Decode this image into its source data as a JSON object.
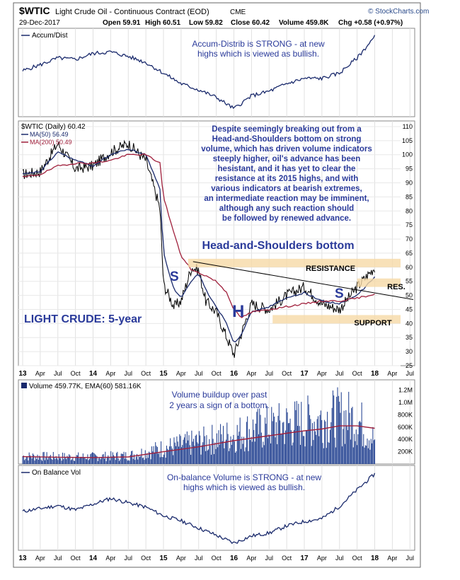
{
  "header": {
    "symbol": "$WTIC",
    "name": "Light Crude Oil - Continuous Contract (EOD)",
    "exchange": "CME",
    "date": "29-Dec-2017",
    "open": "Open 59.91",
    "high": "High 60.51",
    "low": "Low 59.82",
    "close": "Close 60.42",
    "volume": "Volume 459.8K",
    "chg": "Chg +0.58 (+0.97%)",
    "source": "© StockCharts.com"
  },
  "chart_data": [
    {
      "type": "line",
      "panel": "accum-dist",
      "legend": "Accum/Dist",
      "annotation": [
        "Accum-Distrib is STRONG - at new",
        "highs which is viewed as bullish."
      ],
      "x": [
        "13",
        "13.25",
        "13.5",
        "13.75",
        "14",
        "14.25",
        "14.5",
        "14.75",
        "15",
        "15.25",
        "15.5",
        "15.75",
        "16",
        "16.25",
        "16.5",
        "16.75",
        "17",
        "17.25",
        "17.5",
        "17.75",
        "18"
      ],
      "values": [
        0.55,
        0.63,
        0.72,
        0.7,
        0.78,
        0.8,
        0.74,
        0.66,
        0.52,
        0.38,
        0.3,
        0.2,
        0.05,
        0.22,
        0.28,
        0.38,
        0.45,
        0.45,
        0.52,
        0.72,
        1.0
      ]
    },
    {
      "type": "line",
      "panel": "price",
      "legend": [
        {
          "name": "$WTIC (Daily) 60.42",
          "color": "#000000"
        },
        {
          "name": "MA(50) 56.49",
          "color": "#1a2a6c"
        },
        {
          "name": "MA(200) 50.49",
          "color": "#a0203c"
        }
      ],
      "y_ticks": [
        "110",
        "105",
        "100",
        "95",
        "90",
        "85",
        "80",
        "75",
        "70",
        "65",
        "60",
        "55",
        "50",
        "45",
        "40",
        "35",
        "30",
        "25"
      ],
      "ylim": [
        25,
        112
      ],
      "x_ticks": [
        "13",
        "Apr",
        "Jul",
        "Oct",
        "14",
        "Apr",
        "Jul",
        "Oct",
        "15",
        "Apr",
        "Jul",
        "Oct",
        "16",
        "Apr",
        "Jul",
        "Oct",
        "17",
        "Apr",
        "Jul",
        "Oct",
        "18",
        "Apr",
        "Jul"
      ],
      "x": [
        0,
        0.25,
        0.5,
        0.75,
        1,
        1.25,
        1.5,
        1.75,
        1.95,
        2,
        2.15,
        2.25,
        2.4,
        2.5,
        2.6,
        2.75,
        2.9,
        3,
        3.1,
        3.25,
        3.5,
        3.75,
        4,
        4.25,
        4.5,
        4.75,
        5
      ],
      "series": [
        {
          "name": "$WTIC (Daily) 60.42",
          "values": [
            93,
            94,
            104,
            95,
            96,
            101,
            104,
            98,
            81,
            54,
            46,
            48,
            60,
            59,
            48,
            44,
            35,
            29,
            36,
            47,
            45,
            50,
            53,
            47,
            45,
            53,
            60
          ]
        },
        {
          "name": "MA(50) 56.49",
          "values": [
            93,
            94,
            101,
            98,
            96,
            100,
            102,
            100,
            88,
            65,
            52,
            49,
            55,
            58,
            52,
            46,
            40,
            33,
            36,
            44,
            46,
            49,
            51,
            48,
            47,
            50,
            56.5
          ]
        },
        {
          "name": "MA(200) 50.49",
          "values": [
            92,
            93,
            96,
            97,
            97,
            98,
            100,
            100,
            97,
            85,
            72,
            64,
            59,
            58,
            57,
            55,
            51,
            45,
            42,
            44,
            45,
            46,
            47,
            48,
            48,
            49,
            50.5
          ]
        }
      ],
      "annotations": {
        "text_box": [
          "Despite seemingly breaking out from a",
          "Head-and-Shoulders bottom on strong",
          "volume, which has driven volume indicators",
          "steeply higher, oil's advance has been",
          "hesistant, and it has yet to clear the",
          "resistance at its 2015 highs, and with",
          "various indicators at bearish extremes,",
          "an intermediate reaction may be imminent,",
          "although any such reaction should",
          "be followed by renewed advance."
        ],
        "pattern_title": "Head-and-Shoulders bottom",
        "left_shoulder": "S",
        "head": "H",
        "right_shoulder": "S",
        "chart_label": "LIGHT CRUDE: 5-year",
        "resistance": "RESISTANCE",
        "res": "RES.",
        "support": "SUPPORT",
        "resistance_range": [
          60,
          63
        ],
        "res_range": [
          53,
          56
        ],
        "support_range": [
          40,
          43
        ]
      }
    },
    {
      "type": "bar",
      "panel": "volume",
      "legend": "Volume 459.77K, EMA(60) 581.16K",
      "annotation": [
        "Volume buildup over past",
        "2 years a sign of a bottom."
      ],
      "y_ticks": [
        "1.2M",
        "1.0M",
        "800K",
        "600K",
        "400K",
        "200K"
      ],
      "ylim": [
        0,
        1300
      ],
      "x": [
        0,
        0.5,
        1,
        1.5,
        2,
        2.5,
        3,
        3.25,
        3.5,
        3.75,
        4,
        4.25,
        4.5,
        4.75,
        5
      ],
      "ema": [
        120,
        110,
        105,
        115,
        200,
        280,
        380,
        420,
        460,
        500,
        540,
        570,
        620,
        620,
        581
      ],
      "volume_level": [
        150,
        140,
        140,
        160,
        300,
        420,
        550,
        650,
        700,
        750,
        800,
        850,
        900,
        850,
        460
      ]
    },
    {
      "type": "line",
      "panel": "obv",
      "legend": "On Balance Vol",
      "annotation": [
        "On-balance Volume is STRONG - at new",
        "highs which is viewed as bullish."
      ],
      "x": [
        "13",
        "13.25",
        "13.5",
        "13.75",
        "14",
        "14.25",
        "14.5",
        "14.75",
        "15",
        "15.25",
        "15.5",
        "15.75",
        "16",
        "16.25",
        "16.5",
        "16.75",
        "17",
        "17.25",
        "17.5",
        "17.75",
        "18"
      ],
      "values": [
        0.48,
        0.52,
        0.56,
        0.5,
        0.58,
        0.66,
        0.6,
        0.54,
        0.42,
        0.35,
        0.25,
        0.15,
        0.04,
        0.14,
        0.18,
        0.28,
        0.34,
        0.38,
        0.55,
        0.78,
        1.0
      ]
    }
  ]
}
